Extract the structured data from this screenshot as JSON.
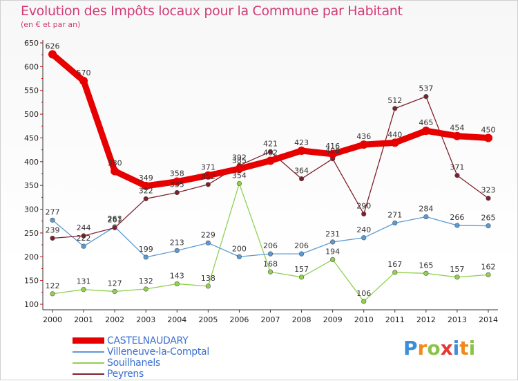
{
  "header": {
    "title": "Evolution des Impôts locaux pour la Commune par Habitant",
    "subtitle": "(en € et par an)"
  },
  "brand": {
    "letters": [
      "P",
      "r",
      "o",
      "x",
      "i",
      "t",
      "i"
    ],
    "colors": [
      "#3a8fd6",
      "#f08a1c",
      "#8bc34a",
      "#e53935",
      "#3a8fd6",
      "#f08a1c",
      "#8bc34a"
    ]
  },
  "chart_data": {
    "type": "line",
    "x": [
      2000,
      2001,
      2002,
      2003,
      2004,
      2005,
      2006,
      2007,
      2008,
      2009,
      2010,
      2011,
      2012,
      2013,
      2014
    ],
    "x_tick_labels": [
      "2000",
      "2001",
      "2002",
      "2003",
      "2004",
      "2005",
      "2006",
      "2007",
      "2008",
      "2009",
      "2010",
      "2011",
      "2012",
      "2013",
      "2014"
    ],
    "ylim": [
      100,
      650
    ],
    "y_ticks": [
      100,
      150,
      200,
      250,
      300,
      350,
      400,
      450,
      500,
      550,
      600,
      650
    ],
    "grid": false,
    "legend_position": "bottom-left",
    "series": [
      {
        "name": "CASTELNAUDARY",
        "color": "#e60000",
        "values": [
          626,
          570,
          380,
          349,
          358,
          371,
          385,
          402,
          423,
          416,
          436,
          440,
          465,
          454,
          450
        ],
        "labels": [
          "626",
          "570",
          "380",
          "349",
          "358",
          "371",
          "385",
          "402",
          "423",
          "416",
          "436",
          "440",
          "465",
          "454",
          "450"
        ]
      },
      {
        "name": "Villeneuve-la-Comptal",
        "color": "#5b9bd5",
        "values": [
          277,
          222,
          263,
          199,
          213,
          229,
          200,
          206,
          206,
          231,
          240,
          271,
          284,
          266,
          265
        ],
        "labels": [
          "277",
          "222",
          "263",
          "199",
          "213",
          "229",
          "200",
          "206",
          "206",
          "231",
          "240",
          "271",
          "284",
          "266",
          "265"
        ]
      },
      {
        "name": "Souilhanels",
        "color": "#92d050",
        "values": [
          122,
          131,
          127,
          132,
          143,
          138,
          354,
          168,
          157,
          194,
          106,
          167,
          165,
          157,
          162
        ],
        "labels": [
          "122",
          "131",
          "127",
          "132",
          "143",
          "138",
          "354",
          "168",
          "157",
          "194",
          "106",
          "167",
          "165",
          "157",
          "162"
        ]
      },
      {
        "name": "Peyrens",
        "color": "#7f1f2b",
        "values": [
          239,
          244,
          261,
          322,
          335,
          352,
          392,
          421,
          364,
          406,
          290,
          512,
          537,
          371,
          323
        ],
        "labels": [
          "239",
          "244",
          "261",
          "322",
          "335",
          "352",
          "392",
          "421",
          "364",
          "406",
          "290",
          "512",
          "537",
          "371",
          "323"
        ]
      }
    ]
  }
}
